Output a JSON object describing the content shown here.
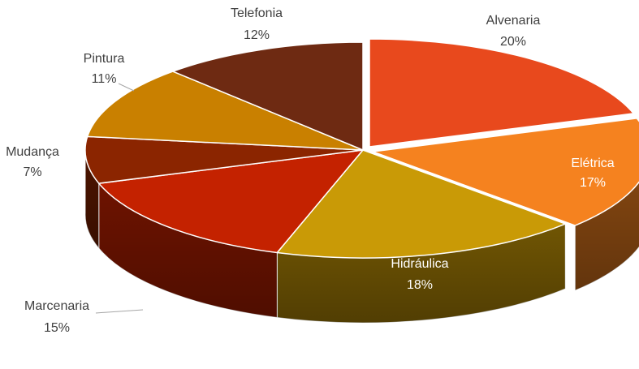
{
  "chart_data": {
    "type": "pie",
    "title": "",
    "categories": [
      "Alvenaria",
      "Elétrica",
      "Hidráulica",
      "Marcenaria",
      "Mudança",
      "Pintura",
      "Telefonia"
    ],
    "values": [
      20,
      17,
      18,
      15,
      7,
      11,
      12
    ],
    "value_labels": [
      "20%",
      "17%",
      "18%",
      "15%",
      "7%",
      "11%",
      "12%"
    ],
    "colors": [
      "#E8491D",
      "#F5821F",
      "#C99A06",
      "#C42200",
      "#8B2500",
      "#C98000",
      "#6E2A12"
    ],
    "legend": "none",
    "style": "3d-exploded"
  }
}
